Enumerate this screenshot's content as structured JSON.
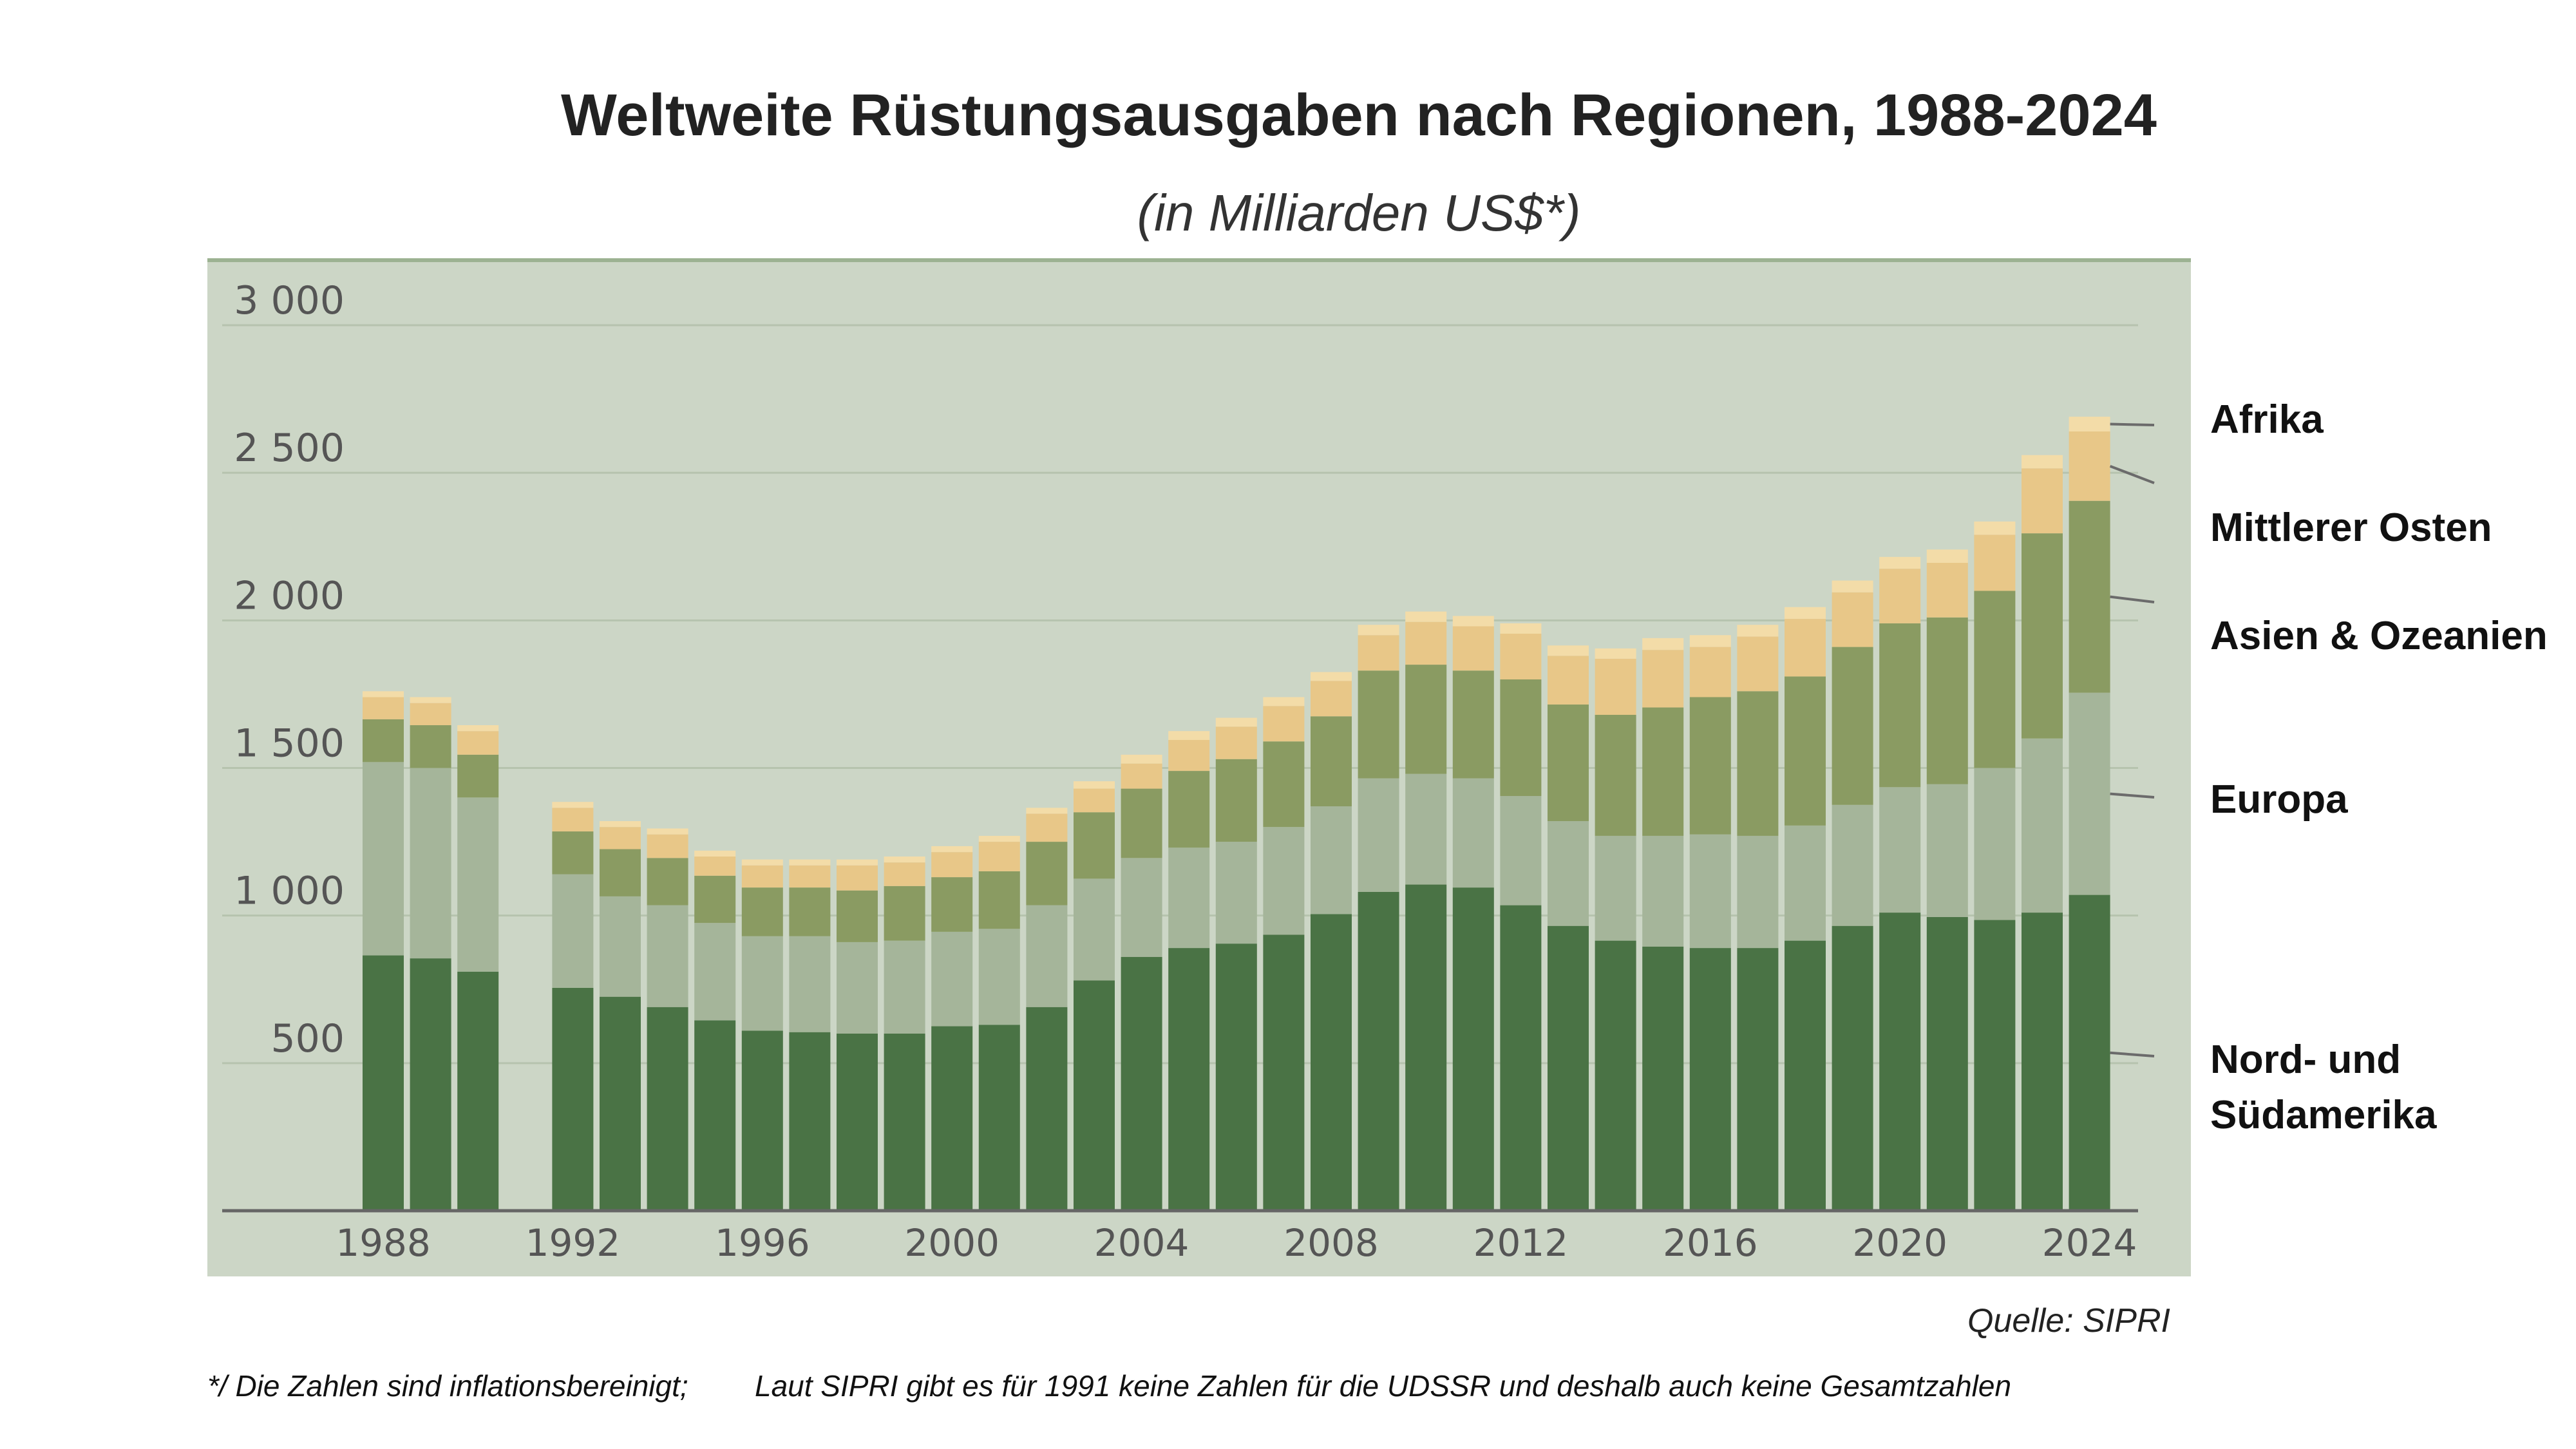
{
  "chart_data": {
    "type": "bar",
    "stacked": true,
    "title": "Weltweite Rüstungsausgaben nach Regionen, 1988-2024",
    "subtitle": "(in Milliarden US$*)",
    "source": "Quelle: SIPRI",
    "footnote_1": "*/ Die Zahlen sind inflationsbereinigt;",
    "footnote_2": "Laut SIPRI gibt es für 1991 keine Zahlen für die UDSSR und deshalb auch keine Gesamtzahlen",
    "ylim": [
      0,
      3000
    ],
    "yticks": [
      {
        "value": 500,
        "label": "500"
      },
      {
        "value": 1000,
        "label": "1 000"
      },
      {
        "value": 1500,
        "label": "1 500"
      },
      {
        "value": 2000,
        "label": "2 000"
      },
      {
        "value": 2500,
        "label": "2 500"
      },
      {
        "value": 3000,
        "label": "3 000"
      }
    ],
    "xticks": [
      1988,
      1992,
      1996,
      2000,
      2004,
      2008,
      2012,
      2016,
      2020,
      2024
    ],
    "xrange": [
      1988,
      2024
    ],
    "grid": true,
    "legend_position": "right",
    "categories": [
      1988,
      1989,
      1990,
      1991,
      1992,
      1993,
      1994,
      1995,
      1996,
      1997,
      1998,
      1999,
      2000,
      2001,
      2002,
      2003,
      2004,
      2005,
      2006,
      2007,
      2008,
      2009,
      2010,
      2011,
      2012,
      2013,
      2014,
      2015,
      2016,
      2017,
      2018,
      2019,
      2020,
      2021,
      2022,
      2023,
      2024
    ],
    "series": [
      {
        "name": "Nord- und Südamerika",
        "color": "#4a7345",
        "values": [
          865,
          855,
          810,
          null,
          755,
          725,
          690,
          645,
          610,
          605,
          600,
          600,
          625,
          630,
          690,
          780,
          860,
          890,
          905,
          935,
          1005,
          1080,
          1105,
          1095,
          1035,
          965,
          915,
          895,
          890,
          890,
          915,
          965,
          1010,
          995,
          985,
          1010,
          1070
        ]
      },
      {
        "name": "Europa",
        "color": "#a5b59a",
        "values": [
          655,
          645,
          590,
          null,
          385,
          340,
          345,
          330,
          320,
          325,
          310,
          315,
          320,
          325,
          345,
          345,
          335,
          340,
          345,
          365,
          365,
          385,
          375,
          370,
          370,
          355,
          355,
          375,
          385,
          380,
          390,
          410,
          425,
          450,
          515,
          590,
          685
        ]
      },
      {
        "name": "Asien & Ozeanien",
        "color": "#8a9b62",
        "values": [
          145,
          145,
          145,
          null,
          145,
          160,
          160,
          160,
          165,
          165,
          175,
          185,
          185,
          195,
          215,
          225,
          235,
          260,
          280,
          290,
          305,
          365,
          370,
          365,
          395,
          395,
          410,
          435,
          465,
          490,
          505,
          535,
          555,
          565,
          600,
          695,
          650
        ]
      },
      {
        "name": "Mittlerer Osten",
        "color": "#e8c788",
        "values": [
          75,
          75,
          80,
          null,
          80,
          75,
          80,
          65,
          75,
          75,
          85,
          80,
          85,
          100,
          95,
          80,
          85,
          105,
          110,
          120,
          120,
          120,
          145,
          150,
          155,
          165,
          190,
          195,
          170,
          185,
          195,
          185,
          185,
          185,
          190,
          220,
          235
        ]
      },
      {
        "name": "Afrika",
        "color": "#f3dca8",
        "values": [
          20,
          20,
          20,
          null,
          20,
          20,
          20,
          20,
          20,
          20,
          20,
          20,
          20,
          20,
          20,
          25,
          30,
          30,
          30,
          30,
          30,
          35,
          35,
          35,
          35,
          35,
          35,
          40,
          40,
          40,
          40,
          40,
          40,
          45,
          45,
          45,
          50
        ]
      }
    ],
    "legend_labels": [
      "Afrika",
      "Mittlerer Osten",
      "Asien & Ozeanien",
      "Europa",
      "Nord- und",
      "Südamerika"
    ]
  }
}
